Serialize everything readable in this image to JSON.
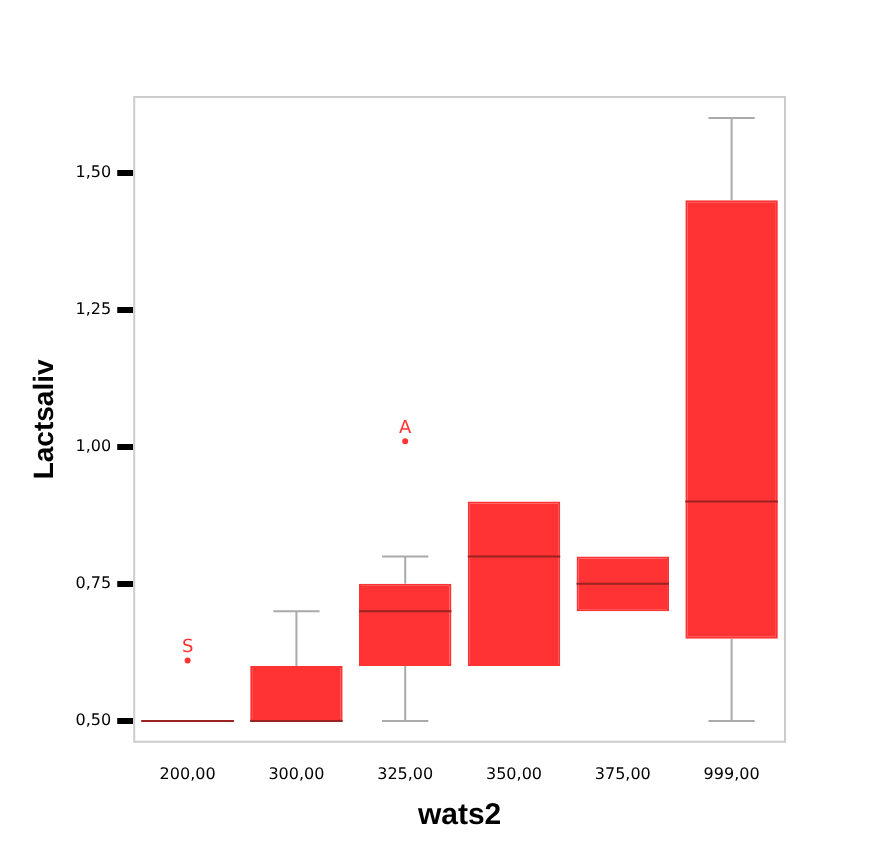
{
  "chart_data": {
    "type": "box",
    "xlabel": "wats2",
    "ylabel": "Lactsaliv",
    "categories": [
      "200,00",
      "300,00",
      "325,00",
      "350,00",
      "375,00",
      "999,00"
    ],
    "boxes": [
      {
        "low": 0.5,
        "q1": 0.5,
        "median": 0.5,
        "q3": 0.5,
        "high": 0.5,
        "outliers": [
          0.61
        ]
      },
      {
        "low": 0.5,
        "q1": 0.5,
        "median": 0.5,
        "q3": 0.6,
        "high": 0.7
      },
      {
        "low": 0.5,
        "q1": 0.6,
        "median": 0.7,
        "q3": 0.75,
        "high": 0.8,
        "outliers": [
          1.01
        ]
      },
      {
        "low": 0.6,
        "q1": 0.6,
        "median": 0.8,
        "q3": 0.9,
        "high": 0.9
      },
      {
        "low": 0.7,
        "q1": 0.7,
        "median": 0.75,
        "q3": 0.8,
        "high": 0.8
      },
      {
        "low": 0.5,
        "q1": 0.65,
        "median": 0.9,
        "q3": 1.45,
        "high": 1.6
      }
    ],
    "color": "#ff3333",
    "ylim": [
      0.46,
      1.64
    ],
    "yticks": [
      {
        "value": 0.5,
        "label": "0,50"
      },
      {
        "value": 0.75,
        "label": "0,75"
      },
      {
        "value": 1.0,
        "label": "1,00"
      },
      {
        "value": 1.25,
        "label": "1,25"
      },
      {
        "value": 1.5,
        "label": "1,50"
      }
    ],
    "annotations": [
      "S",
      "A"
    ],
    "grid": false,
    "legend": false
  }
}
